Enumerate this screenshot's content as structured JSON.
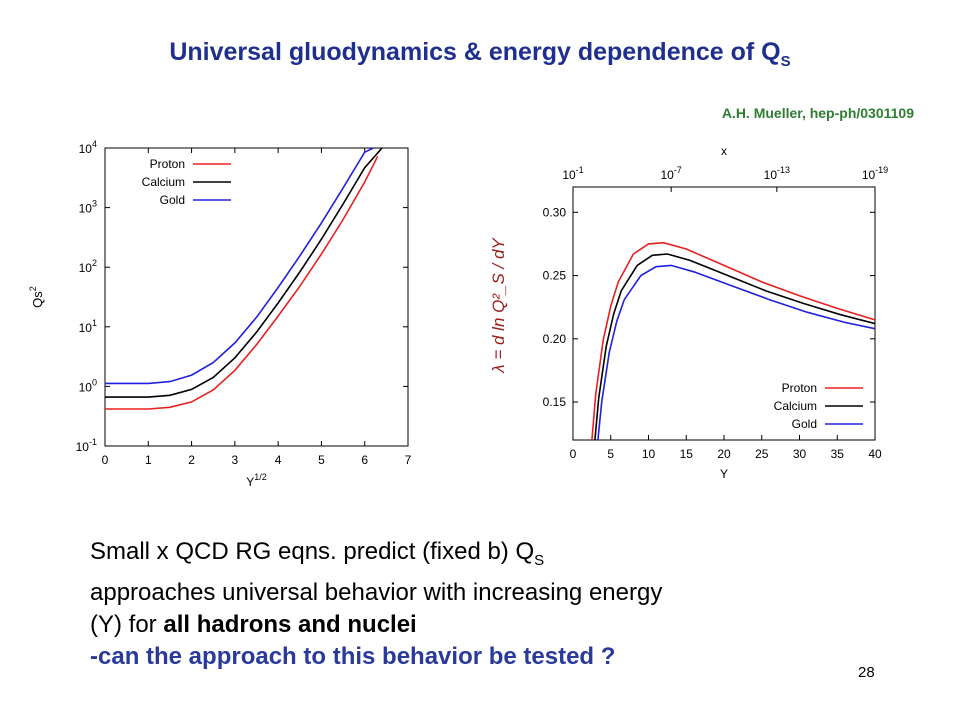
{
  "slide": {
    "title_main": "Universal gluodynamics & energy dependence of Q",
    "title_sub": "S",
    "citation": "A.H. Mueller, hep-ph/0301109",
    "text": {
      "line1_a": "Small x QCD RG eqns. predict (fixed b)  Q",
      "line1_sub": "S",
      "line2": "approaches universal behavior with increasing energy",
      "line3_a": "(Y) for ",
      "line3_bold": "all hadrons and nuclei",
      "line4": "-can the approach to this behavior be tested ?"
    },
    "page_number": "28"
  },
  "chart_data": [
    {
      "type": "line",
      "ylabel": "Qs",
      "ylabel_sup": "2",
      "xlabel": "Y",
      "xlabel_sup": "1/2",
      "y_scale": "log",
      "xlim": [
        0,
        7
      ],
      "ylim_log10": [
        -1,
        4
      ],
      "x_ticks": [
        "0",
        "1",
        "2",
        "3",
        "4",
        "5",
        "6",
        "7"
      ],
      "y_tick_bases": [
        "10",
        "10",
        "10",
        "10",
        "10",
        "10"
      ],
      "y_tick_exps": [
        "-1",
        "0",
        "1",
        "2",
        "3",
        "4"
      ],
      "legend_position": "top-left",
      "series": [
        {
          "name": "Proton",
          "color": "#e82020",
          "x": [
            0,
            1,
            1.5,
            2,
            2.5,
            3,
            3.5,
            4,
            4.5,
            5,
            5.5,
            6,
            6.3
          ],
          "log10_y": [
            -0.38,
            -0.38,
            -0.35,
            -0.26,
            -0.06,
            0.27,
            0.7,
            1.18,
            1.68,
            2.22,
            2.8,
            3.43,
            3.86
          ]
        },
        {
          "name": "Calcium",
          "color": "#000000",
          "x": [
            0,
            1,
            1.5,
            2,
            2.5,
            3,
            3.5,
            4,
            4.5,
            5,
            5.5,
            6,
            6.4
          ],
          "log10_y": [
            -0.18,
            -0.18,
            -0.15,
            -0.05,
            0.15,
            0.48,
            0.91,
            1.4,
            1.92,
            2.47,
            3.06,
            3.67,
            4.0
          ]
        },
        {
          "name": "Gold",
          "color": "#2020e0",
          "x": [
            0,
            1,
            1.5,
            2,
            2.5,
            3,
            3.5,
            4,
            4.5,
            5,
            5.5,
            6,
            6.2
          ],
          "log10_y": [
            0.05,
            0.05,
            0.08,
            0.19,
            0.4,
            0.73,
            1.16,
            1.66,
            2.19,
            2.74,
            3.33,
            3.93,
            4.0
          ]
        }
      ]
    },
    {
      "type": "line",
      "ylabel": "λ = d ln Q²_S / dY",
      "xlabel": "Y",
      "top_xlabel": "x",
      "xlim": [
        0,
        40
      ],
      "ylim": [
        0.12,
        0.32
      ],
      "x_ticks": [
        "0",
        "5",
        "10",
        "15",
        "20",
        "25",
        "30",
        "35",
        "40"
      ],
      "y_ticks": [
        "0.15",
        "0.20",
        "0.25",
        "0.30"
      ],
      "y_tick_values": [
        0.15,
        0.2,
        0.25,
        0.3
      ],
      "top_ticks": [
        {
          "value": 0,
          "base": "10",
          "exp": "-1"
        },
        {
          "value": 13,
          "base": "10",
          "exp": "-7"
        },
        {
          "value": 27,
          "base": "10",
          "exp": "-13"
        },
        {
          "value": 40,
          "base": "10",
          "exp": "-19"
        }
      ],
      "legend_position": "bottom-right",
      "series": [
        {
          "name": "Proton",
          "color": "#e82020",
          "x": [
            2.5,
            3,
            4,
            5,
            6,
            8,
            10,
            12,
            15,
            20,
            25,
            30,
            35,
            40
          ],
          "y": [
            0.12,
            0.156,
            0.199,
            0.226,
            0.245,
            0.267,
            0.275,
            0.276,
            0.271,
            0.258,
            0.245,
            0.234,
            0.224,
            0.215
          ]
        },
        {
          "name": "Calcium",
          "color": "#000000",
          "x": [
            2.9,
            3.4,
            4.4,
            5.4,
            6.4,
            8.5,
            10.5,
            12.5,
            15.5,
            20.5,
            25.5,
            30.5,
            35.5,
            40
          ],
          "y": [
            0.12,
            0.153,
            0.194,
            0.22,
            0.238,
            0.258,
            0.266,
            0.267,
            0.262,
            0.25,
            0.238,
            0.228,
            0.219,
            0.212
          ]
        },
        {
          "name": "Gold",
          "color": "#2020e0",
          "x": [
            3.3,
            3.8,
            4.8,
            5.8,
            6.8,
            9,
            11,
            13,
            16,
            21,
            26,
            31,
            36,
            40
          ],
          "y": [
            0.12,
            0.15,
            0.189,
            0.214,
            0.231,
            0.25,
            0.257,
            0.258,
            0.253,
            0.242,
            0.231,
            0.221,
            0.213,
            0.208
          ]
        }
      ]
    }
  ]
}
